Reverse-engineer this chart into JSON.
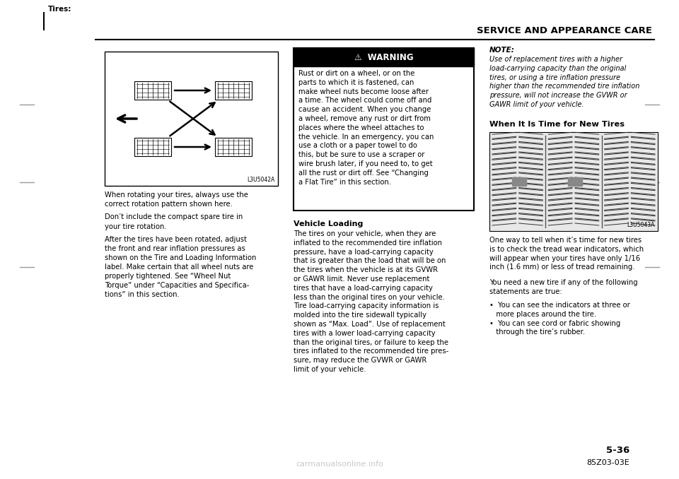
{
  "bg_color": "#ffffff",
  "header_text": "SERVICE AND APPEARANCE CARE",
  "top_label": "Tires:",
  "page_number": "5-36",
  "doc_number": "85Z03-03E",
  "watermark": "carmanualsonline.info",
  "tire_diagram_label": "L3U5042A",
  "tire_image_label": "L3U5043A",
  "warning_title": "⚠  WARNING",
  "note_title": "NOTE:",
  "vehicle_loading_title": "Vehicle Loading",
  "new_tires_title": "When It Is Time for New Tires"
}
